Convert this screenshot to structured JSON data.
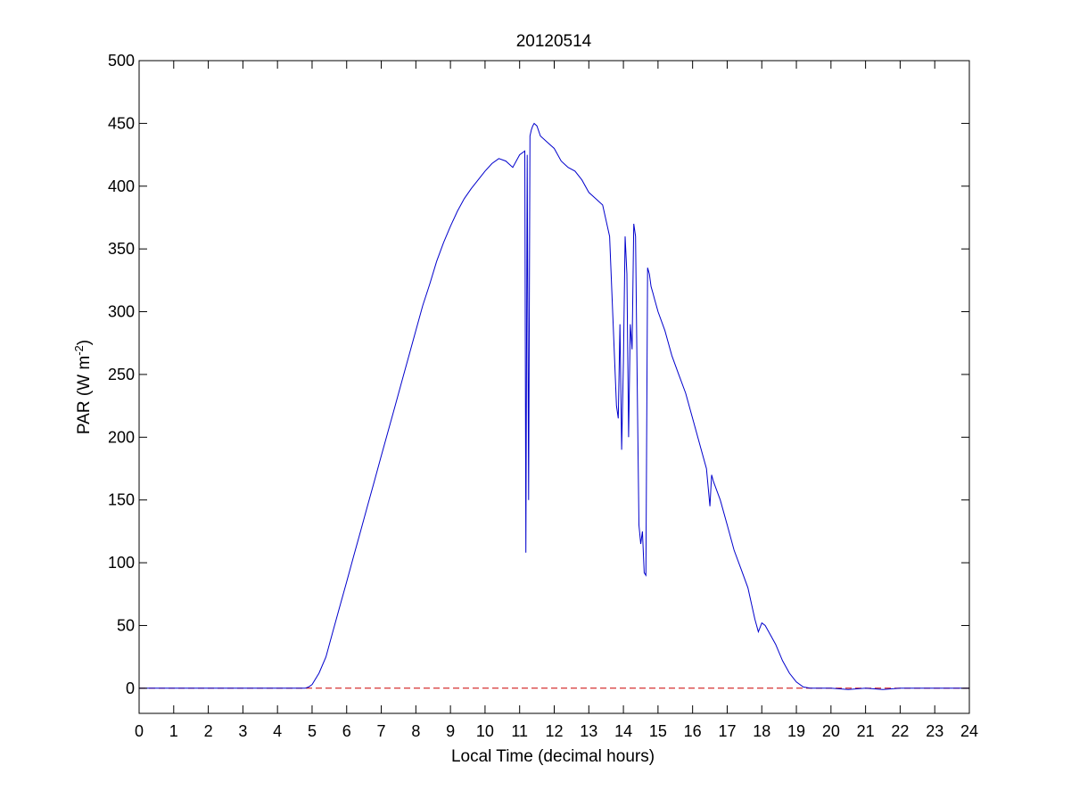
{
  "chart_data": {
    "type": "line",
    "title": "20120514",
    "xlabel": "Local Time (decimal hours)",
    "ylabel": {
      "main": "PAR (W m",
      "superscript": "-2",
      "close": ")"
    },
    "xlim": [
      0,
      24
    ],
    "ylim": [
      -20,
      500
    ],
    "xticks": [
      0,
      1,
      2,
      3,
      4,
      5,
      6,
      7,
      8,
      9,
      10,
      11,
      12,
      13,
      14,
      15,
      16,
      17,
      18,
      19,
      20,
      21,
      22,
      23,
      24
    ],
    "yticks": [
      0,
      50,
      100,
      150,
      200,
      250,
      300,
      350,
      400,
      450,
      500
    ],
    "grid": false,
    "box": true,
    "series": [
      {
        "color": "#0000cc",
        "style": "solid",
        "x": [
          0,
          4.8,
          4.9,
          5.0,
          5.2,
          5.4,
          5.6,
          5.8,
          6.0,
          6.2,
          6.4,
          6.6,
          6.8,
          7.0,
          7.2,
          7.4,
          7.6,
          7.8,
          8.0,
          8.2,
          8.4,
          8.6,
          8.8,
          9.0,
          9.2,
          9.4,
          9.6,
          9.8,
          10.0,
          10.2,
          10.4,
          10.6,
          10.8,
          11.0,
          11.15,
          11.18,
          11.22,
          11.26,
          11.3,
          11.34,
          11.38,
          11.42,
          11.5,
          11.6,
          11.8,
          12.0,
          12.2,
          12.4,
          12.6,
          12.8,
          13.0,
          13.2,
          13.4,
          13.6,
          13.8,
          13.85,
          13.9,
          13.95,
          14.0,
          14.05,
          14.1,
          14.15,
          14.2,
          14.25,
          14.3,
          14.35,
          14.4,
          14.45,
          14.5,
          14.55,
          14.6,
          14.65,
          14.7,
          14.75,
          14.8,
          14.85,
          14.9,
          15.0,
          15.2,
          15.4,
          15.6,
          15.8,
          16.0,
          16.2,
          16.4,
          16.5,
          16.55,
          16.6,
          16.8,
          17.0,
          17.2,
          17.4,
          17.6,
          17.8,
          17.9,
          18.0,
          18.1,
          18.2,
          18.4,
          18.6,
          18.8,
          19.0,
          19.2,
          19.4,
          19.6,
          20.0,
          20.5,
          21.0,
          21.5,
          22.0,
          24
        ],
        "y": [
          0,
          0,
          1,
          3,
          12,
          25,
          45,
          65,
          85,
          105,
          125,
          145,
          165,
          185,
          205,
          225,
          245,
          265,
          285,
          305,
          322,
          340,
          355,
          368,
          380,
          390,
          398,
          405,
          412,
          418,
          422,
          420,
          415,
          425,
          428,
          108,
          425,
          150,
          440,
          445,
          448,
          450,
          448,
          440,
          435,
          430,
          420,
          415,
          412,
          405,
          395,
          390,
          385,
          360,
          225,
          215,
          290,
          190,
          260,
          360,
          330,
          200,
          290,
          270,
          370,
          360,
          240,
          130,
          115,
          125,
          92,
          90,
          335,
          330,
          320,
          315,
          310,
          300,
          285,
          265,
          250,
          235,
          215,
          195,
          175,
          145,
          170,
          165,
          150,
          130,
          110,
          95,
          80,
          55,
          45,
          52,
          50,
          45,
          35,
          22,
          12,
          5,
          1,
          0,
          0,
          0,
          -1,
          0,
          -1,
          0,
          0
        ]
      },
      {
        "color": "#cc0000",
        "style": "dashed",
        "x": [
          0,
          24
        ],
        "y": [
          0,
          0
        ]
      }
    ]
  }
}
